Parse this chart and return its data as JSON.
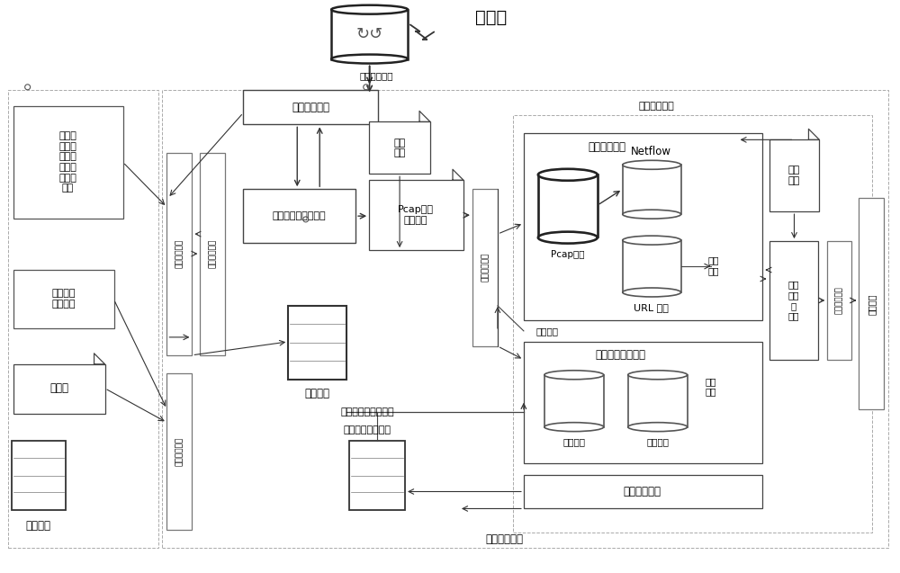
{
  "bg": "#ffffff",
  "internet_label": "互联网",
  "net_attack_label": "网络攻击数据",
  "ext_iface_label": "外部网络接口",
  "int_iface1_label": "内部网络接口",
  "int_iface2_label": "内部网络接口",
  "mgmt_iface_label": "管理网络接口",
  "net_data_ctrl_label": "网络数据控制和捕获",
  "pcap_alert_label": "Pcap数据\n告警日志",
  "detect_rule1_label": "检测\n规则",
  "mgmt_net_iface_label": "管理网络接口",
  "honeypot_node_label": "密罐节点",
  "honeypot_host_log_label": "密罐主机\n日志转发",
  "whitelist_label": "白名单",
  "honey_gateway_label": "密网网关",
  "host_log_malware_label": "主机日志、恶意文件",
  "whitelist_honeypot_cfg_label": "白名单、密罐配置",
  "site_mgmt_node_label": "站点管理节点",
  "net_log_mgmt_label": "网络日志管理",
  "pcap_report_label": "Pcap报文",
  "netflow_label": "Netflow",
  "url_domain_label": "URL 域名",
  "net_log_label": "网络\n日志",
  "alert_log_label": "告警日志",
  "host_change_log_label": "主机变化日志管理",
  "malware_label": "恶意文件",
  "host_log_label": "主机日志",
  "host_log_right_label": "主机\n日志",
  "honeypot_host_mgmt_label": "密罐主机管理",
  "correlation_label": "关联\n分析\n及\n上传",
  "ext_net_iface2_label": "外部网络接口",
  "upper_node_label": "上级节点",
  "net_alert_rule_label": "网络告警规则",
  "detect_rule2_label": "检测\n规则",
  "file_proc_label": "文件、\n进程、\n网络、\n注册表\n监控与\n采集"
}
